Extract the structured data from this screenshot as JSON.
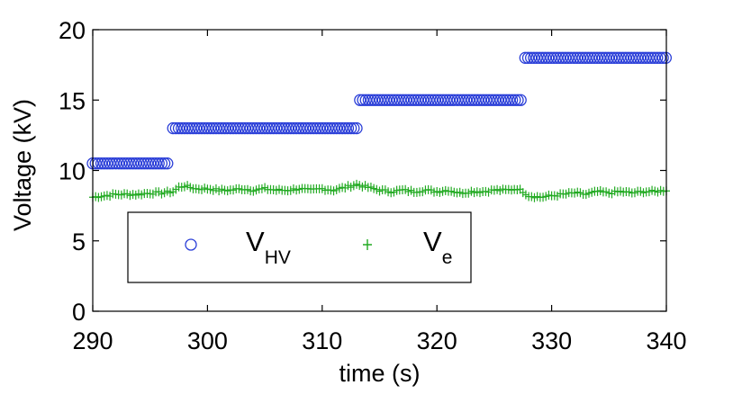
{
  "chart_data": {
    "type": "scatter",
    "title": "",
    "xlabel": "time (s)",
    "ylabel": "Voltage (kV)",
    "xlim": [
      290,
      340
    ],
    "ylim": [
      0,
      20
    ],
    "xticks": [
      290,
      300,
      310,
      320,
      330,
      340
    ],
    "xtick_labels": [
      "290",
      "300",
      "310",
      "320",
      "330",
      "340"
    ],
    "yticks": [
      0,
      5,
      10,
      15,
      20
    ],
    "ytick_labels": [
      "0",
      "5",
      "10",
      "15",
      "20"
    ],
    "grid": false,
    "legend_position": "lower-left",
    "series": [
      {
        "name": "V_HV",
        "legend_main": "V",
        "legend_sub": "HV",
        "marker": "circle",
        "color": "#2b3fd8",
        "segments": [
          {
            "x_start": 290.0,
            "x_end": 296.5,
            "value": 10.5
          },
          {
            "x_start": 297.0,
            "x_end": 313.0,
            "value": 13.0
          },
          {
            "x_start": 313.3,
            "x_end": 327.5,
            "value": 15.0
          },
          {
            "x_start": 327.7,
            "x_end": 340.0,
            "value": 18.0
          }
        ],
        "step": 0.25
      },
      {
        "name": "V_e",
        "legend_main": "V",
        "legend_sub": "e",
        "marker": "plus",
        "color": "#22aa22",
        "points": [
          [
            290.0,
            8.1
          ],
          [
            291.0,
            8.2
          ],
          [
            292.0,
            8.3
          ],
          [
            293.0,
            8.3
          ],
          [
            294.0,
            8.3
          ],
          [
            295.0,
            8.4
          ],
          [
            296.0,
            8.4
          ],
          [
            297.0,
            8.5
          ],
          [
            297.5,
            8.8
          ],
          [
            298.0,
            8.9
          ],
          [
            299.0,
            8.7
          ],
          [
            300.0,
            8.7
          ],
          [
            301.0,
            8.6
          ],
          [
            302.0,
            8.6
          ],
          [
            303.0,
            8.7
          ],
          [
            304.0,
            8.6
          ],
          [
            305.0,
            8.7
          ],
          [
            306.0,
            8.6
          ],
          [
            307.0,
            8.6
          ],
          [
            308.0,
            8.7
          ],
          [
            309.0,
            8.6
          ],
          [
            310.0,
            8.7
          ],
          [
            311.0,
            8.6
          ],
          [
            312.0,
            8.8
          ],
          [
            313.0,
            9.0
          ],
          [
            314.0,
            8.8
          ],
          [
            315.0,
            8.6
          ],
          [
            316.0,
            8.5
          ],
          [
            317.0,
            8.6
          ],
          [
            318.0,
            8.5
          ],
          [
            319.0,
            8.6
          ],
          [
            320.0,
            8.5
          ],
          [
            321.0,
            8.6
          ],
          [
            322.0,
            8.4
          ],
          [
            323.0,
            8.5
          ],
          [
            324.0,
            8.5
          ],
          [
            325.0,
            8.6
          ],
          [
            326.0,
            8.6
          ],
          [
            327.0,
            8.7
          ],
          [
            327.5,
            8.5
          ],
          [
            328.0,
            8.2
          ],
          [
            329.0,
            8.1
          ],
          [
            330.0,
            8.2
          ],
          [
            331.0,
            8.3
          ],
          [
            332.0,
            8.4
          ],
          [
            333.0,
            8.3
          ],
          [
            334.0,
            8.5
          ],
          [
            335.0,
            8.4
          ],
          [
            336.0,
            8.5
          ],
          [
            337.0,
            8.4
          ],
          [
            338.0,
            8.5
          ],
          [
            339.0,
            8.5
          ],
          [
            340.0,
            8.6
          ]
        ],
        "step": 0.25
      }
    ]
  }
}
